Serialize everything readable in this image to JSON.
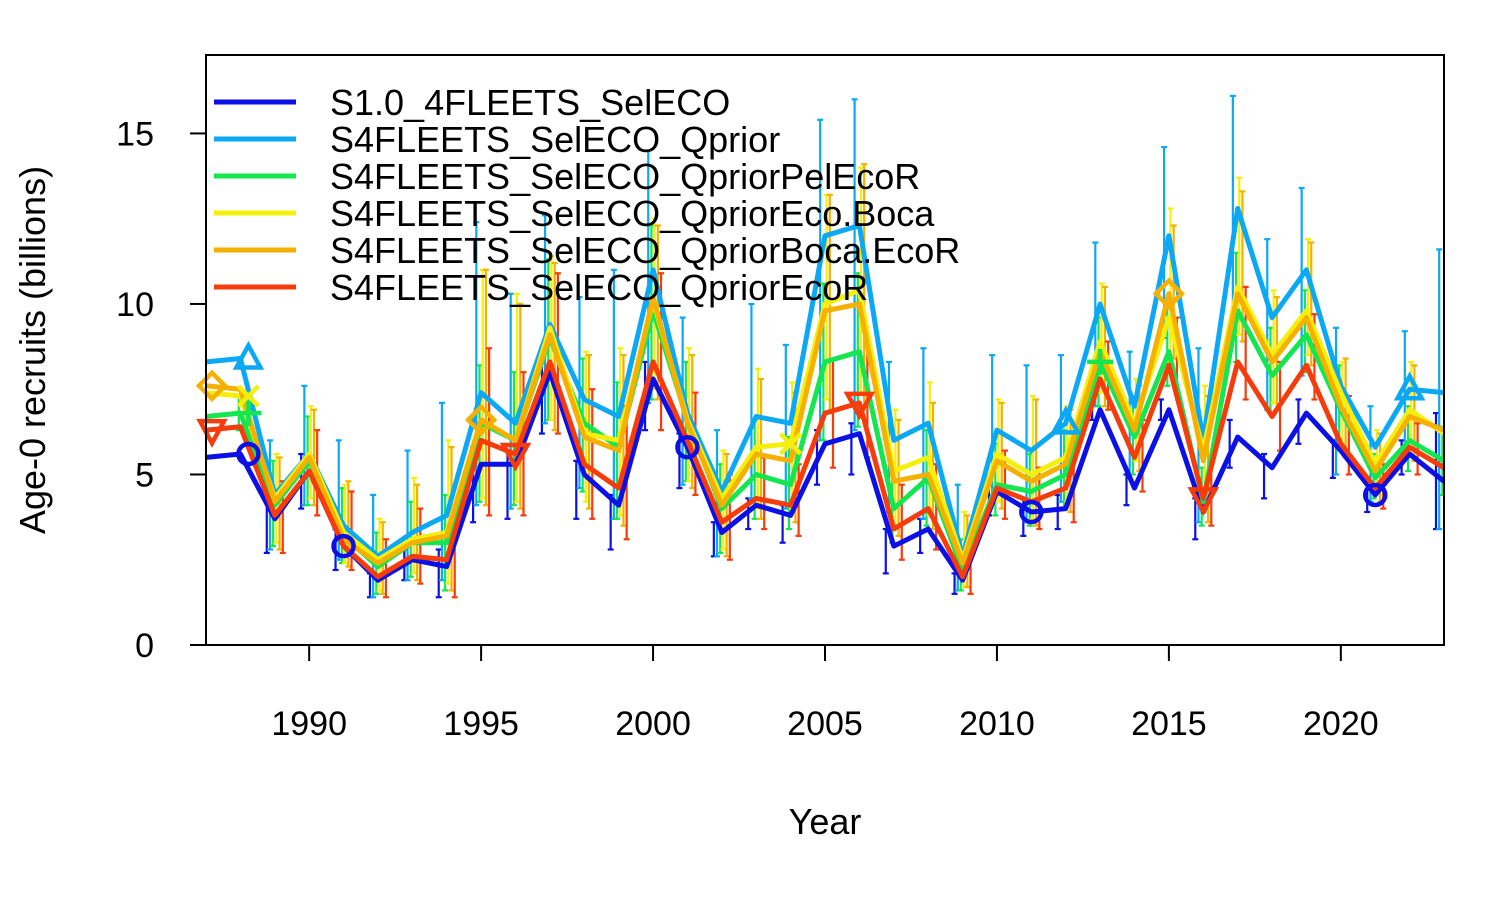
{
  "chart_data": {
    "type": "line",
    "xlabel": "Year",
    "ylabel": "Age-0 recruits (billions)",
    "xlim": [
      1987,
      2023
    ],
    "ylim": [
      0,
      17.3
    ],
    "x_ticks": [
      1990,
      1995,
      2000,
      2005,
      2010,
      2015,
      2020
    ],
    "y_ticks": [
      0,
      5,
      10,
      15
    ],
    "legend_position": "top-left",
    "x": [
      1987,
      1988,
      1989,
      1990,
      1991,
      1992,
      1993,
      1994,
      1995,
      1996,
      1997,
      1998,
      1999,
      2000,
      2001,
      2002,
      2003,
      2004,
      2005,
      2006,
      2007,
      2008,
      2009,
      2010,
      2011,
      2012,
      2013,
      2014,
      2015,
      2016,
      2017,
      2018,
      2019,
      2020,
      2021,
      2022,
      2023
    ],
    "series": [
      {
        "name": "S1.0_4FLEETS_SelECO",
        "color": "#0a10e6",
        "marker": "circle",
        "marker_years": [
          1988,
          1991,
          2001,
          2011,
          2021
        ],
        "values": [
          5.5,
          5.6,
          3.7,
          5.1,
          2.9,
          1.9,
          2.5,
          2.3,
          5.3,
          5.3,
          8.0,
          5.0,
          4.1,
          7.8,
          5.8,
          3.3,
          4.1,
          3.8,
          5.9,
          6.2,
          2.9,
          3.4,
          1.9,
          4.5,
          3.9,
          4.0,
          6.9,
          4.6,
          6.9,
          3.9,
          6.1,
          5.2,
          6.8,
          5.7,
          4.4,
          5.6,
          4.8
        ],
        "error_low": [
          null,
          null,
          2.7,
          4.0,
          2.2,
          1.4,
          1.9,
          1.4,
          3.6,
          3.7,
          6.2,
          3.7,
          2.8,
          6.3,
          4.6,
          2.6,
          3.4,
          3.0,
          4.7,
          5.0,
          2.1,
          2.7,
          1.5,
          3.8,
          3.2,
          3.4,
          6.6,
          4.1,
          6.6,
          3.1,
          5.2,
          4.3,
          5.9,
          4.9,
          3.9,
          5.0,
          3.4
        ],
        "error_high": [
          null,
          null,
          4.7,
          5.6,
          3.4,
          2.1,
          2.8,
          2.8,
          5.8,
          5.7,
          8.5,
          5.4,
          4.4,
          8.3,
          6.2,
          3.6,
          4.3,
          4.1,
          6.3,
          6.5,
          3.4,
          3.7,
          2.1,
          4.9,
          4.3,
          4.4,
          7.3,
          5.0,
          7.2,
          4.3,
          6.6,
          5.6,
          7.2,
          6.0,
          4.8,
          6.0,
          6.8
        ]
      },
      {
        "name": "S4FLEETS_SelECO_Qprior",
        "color": "#0aa8f5",
        "marker": "triangle-up",
        "marker_years": [
          1988,
          2012,
          2022
        ],
        "values": [
          8.3,
          8.4,
          4.4,
          5.6,
          3.5,
          2.6,
          3.3,
          3.8,
          7.4,
          6.5,
          9.4,
          7.2,
          6.7,
          11.0,
          6.8,
          4.5,
          6.7,
          6.5,
          12.0,
          12.3,
          6.0,
          6.5,
          2.6,
          6.3,
          5.7,
          6.5,
          10.0,
          7.0,
          12.0,
          6.0,
          12.8,
          9.6,
          11.0,
          7.6,
          5.8,
          7.5,
          7.4
        ],
        "error_low": [
          null,
          null,
          2.8,
          4.1,
          2.5,
          1.4,
          1.9,
          1.9,
          4.1,
          4.0,
          6.5,
          4.6,
          3.7,
          7.1,
          4.7,
          2.6,
          4.3,
          4.0,
          6.0,
          6.3,
          3.9,
          3.7,
          1.6,
          4.3,
          3.6,
          4.2,
          7.0,
          5.0,
          9.0,
          3.6,
          9.6,
          6.9,
          7.9,
          5.0,
          4.2,
          5.7,
          3.4
        ],
        "error_high": [
          null,
          9.4,
          6.0,
          7.6,
          6.0,
          4.4,
          5.7,
          7.1,
          12.4,
          10.3,
          12.6,
          10.2,
          11.0,
          14.5,
          9.6,
          6.3,
          10.0,
          8.8,
          15.4,
          16.0,
          8.3,
          8.7,
          4.7,
          8.5,
          8.2,
          8.5,
          11.8,
          8.6,
          14.6,
          8.7,
          16.1,
          11.9,
          13.4,
          9.3,
          7.0,
          9.2,
          11.6
        ]
      },
      {
        "name": "S4FLEETS_SelECO_QpriorPelEcoR",
        "color": "#14e650",
        "marker": "plus",
        "marker_years": [
          1988,
          2013
        ],
        "values": [
          6.7,
          6.8,
          4.1,
          5.4,
          3.2,
          2.3,
          3.0,
          3.0,
          6.5,
          6.0,
          9.0,
          6.5,
          5.8,
          9.8,
          6.6,
          4.0,
          5.0,
          4.7,
          8.3,
          8.6,
          4.0,
          4.9,
          2.2,
          4.7,
          4.5,
          5.0,
          8.3,
          6.1,
          8.6,
          4.2,
          9.8,
          7.9,
          9.1,
          6.9,
          4.9,
          6.0,
          5.4
        ],
        "error_low": [
          null,
          6.3,
          2.9,
          4.1,
          2.4,
          1.5,
          2.0,
          1.6,
          4.2,
          4.1,
          6.6,
          4.5,
          3.7,
          7.2,
          4.8,
          2.7,
          3.7,
          3.4,
          6.0,
          6.4,
          3.0,
          3.5,
          1.6,
          3.8,
          3.5,
          4.0,
          7.0,
          5.0,
          7.6,
          3.5,
          8.3,
          6.8,
          8.0,
          5.7,
          4.3,
          5.1,
          4.4
        ],
        "error_high": [
          null,
          7.3,
          5.4,
          6.7,
          4.6,
          3.3,
          4.2,
          4.4,
          8.2,
          8.0,
          11.3,
          8.4,
          7.7,
          12.3,
          8.3,
          5.3,
          6.6,
          6.1,
          10.6,
          10.9,
          5.3,
          6.3,
          3.1,
          5.9,
          5.6,
          6.3,
          9.6,
          7.3,
          10.0,
          5.2,
          11.5,
          9.3,
          10.4,
          8.2,
          5.6,
          7.0,
          6.4
        ]
      },
      {
        "name": "S4FLEETS_SelECO_QpriorEco.Boca",
        "color": "#f5f00a",
        "marker": "x",
        "marker_years": [
          1988,
          2004
        ],
        "values": [
          7.4,
          7.3,
          4.3,
          5.6,
          3.3,
          2.5,
          3.1,
          3.3,
          6.6,
          6.0,
          9.3,
          6.2,
          6.0,
          10.1,
          6.6,
          4.3,
          5.8,
          5.9,
          10.0,
          10.4,
          5.1,
          5.5,
          2.5,
          5.6,
          5.0,
          5.5,
          8.9,
          6.5,
          9.6,
          5.7,
          10.5,
          8.5,
          9.8,
          7.4,
          5.3,
          6.9,
          6.2
        ],
        "error_low": [
          null,
          null,
          3.0,
          4.3,
          2.4,
          1.6,
          2.1,
          1.8,
          4.3,
          4.2,
          6.6,
          4.2,
          3.8,
          7.5,
          4.8,
          2.8,
          4.0,
          4.0,
          7.2,
          7.4,
          3.5,
          3.8,
          1.7,
          4.2,
          3.7,
          4.2,
          7.4,
          5.4,
          8.3,
          3.9,
          9.1,
          7.1,
          8.5,
          5.9,
          4.5,
          5.7,
          4.9
        ],
        "error_high": [
          null,
          null,
          5.6,
          7.0,
          4.7,
          3.7,
          4.9,
          6.0,
          11.0,
          10.3,
          11.4,
          8.6,
          8.7,
          12.5,
          8.7,
          5.7,
          8.1,
          7.7,
          13.2,
          14.0,
          6.9,
          7.7,
          3.9,
          7.2,
          7.3,
          7.0,
          10.6,
          7.8,
          12.8,
          7.6,
          13.7,
          10.4,
          11.9,
          8.3,
          6.3,
          8.3,
          7.3
        ]
      },
      {
        "name": "S4FLEETS_SelECO_QpriorBoca.EcoR",
        "color": "#f5b000",
        "marker": "diamond",
        "marker_years": [
          1987,
          1995,
          2015
        ],
        "values": [
          7.6,
          7.5,
          4.2,
          5.5,
          3.1,
          2.4,
          3.0,
          3.2,
          6.6,
          6.0,
          9.1,
          6.1,
          5.7,
          10.2,
          6.5,
          4.1,
          5.6,
          5.4,
          9.8,
          10.0,
          4.8,
          5.0,
          2.4,
          5.4,
          4.8,
          5.3,
          8.6,
          6.3,
          10.3,
          5.4,
          10.3,
          8.3,
          9.6,
          7.0,
          5.1,
          6.7,
          6.3
        ],
        "error_low": [
          null,
          null,
          2.8,
          4.1,
          2.3,
          1.5,
          1.9,
          1.6,
          4.1,
          4.0,
          6.3,
          4.0,
          3.5,
          7.2,
          4.6,
          2.6,
          3.7,
          3.6,
          6.8,
          7.0,
          3.2,
          3.4,
          1.7,
          4.0,
          3.5,
          3.9,
          7.0,
          5.1,
          8.4,
          3.6,
          8.9,
          6.9,
          8.2,
          5.5,
          4.2,
          5.4,
          4.8
        ],
        "error_high": [
          null,
          null,
          5.5,
          6.9,
          4.8,
          3.6,
          4.7,
          5.8,
          11.0,
          10.0,
          11.2,
          8.5,
          8.5,
          12.3,
          8.5,
          5.6,
          7.8,
          7.4,
          13.2,
          14.1,
          6.6,
          7.1,
          3.8,
          7.1,
          7.2,
          6.9,
          10.5,
          7.6,
          12.3,
          7.3,
          13.3,
          10.2,
          11.8,
          8.4,
          6.2,
          8.2,
          7.4
        ]
      },
      {
        "name": "S4FLEETS_SelECO_QpriorEcoR",
        "color": "#f53c0a",
        "marker": "triangle-down",
        "marker_years": [
          1987,
          1996,
          2006,
          2016
        ],
        "values": [
          6.3,
          6.4,
          3.8,
          5.1,
          2.9,
          2.0,
          2.6,
          2.5,
          6.0,
          5.6,
          8.3,
          5.3,
          4.6,
          8.3,
          6.0,
          3.6,
          4.3,
          4.1,
          6.8,
          7.1,
          3.4,
          4.0,
          2.0,
          4.6,
          4.2,
          4.6,
          7.8,
          5.5,
          8.2,
          4.3,
          8.3,
          6.7,
          8.2,
          5.9,
          4.6,
          5.8,
          5.2
        ],
        "error_low": [
          null,
          null,
          2.7,
          3.8,
          2.2,
          1.4,
          1.8,
          1.4,
          3.8,
          3.8,
          6.2,
          3.7,
          3.1,
          6.3,
          4.4,
          2.5,
          3.4,
          3.2,
          5.2,
          5.5,
          2.5,
          2.8,
          1.5,
          3.7,
          3.4,
          3.6,
          6.9,
          4.5,
          7.4,
          3.5,
          7.2,
          5.7,
          7.2,
          5.0,
          4.0,
          5.0,
          4.1
        ],
        "error_high": [
          null,
          null,
          4.8,
          6.3,
          4.5,
          3.1,
          4.0,
          4.0,
          8.7,
          8.0,
          10.9,
          7.5,
          7.0,
          10.9,
          7.4,
          5.0,
          5.5,
          5.3,
          8.4,
          9.0,
          4.7,
          5.3,
          2.8,
          5.7,
          5.2,
          5.7,
          8.9,
          6.6,
          9.6,
          5.3,
          10.5,
          8.3,
          9.7,
          7.3,
          5.3,
          6.5,
          6.4
        ]
      }
    ]
  }
}
